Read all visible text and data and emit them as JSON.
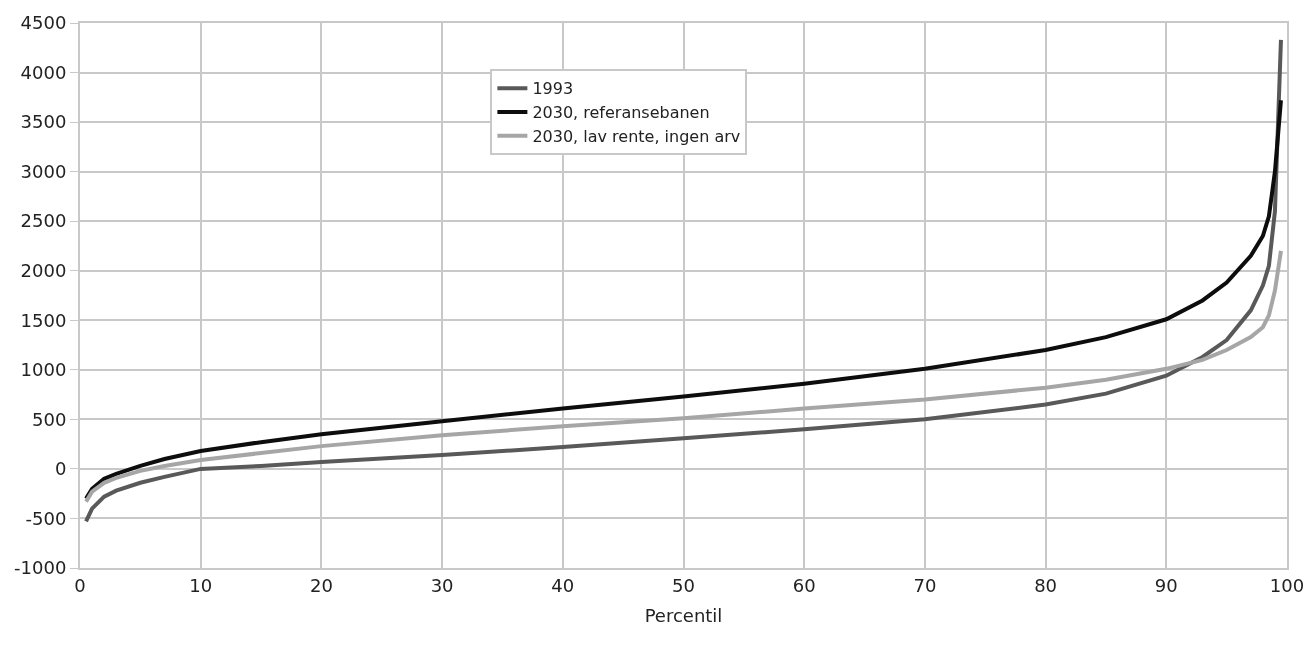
{
  "chart_data": {
    "type": "line",
    "xlabel": "Percentil",
    "x": [
      0.5,
      1,
      2,
      3,
      5,
      7,
      10,
      15,
      20,
      30,
      40,
      50,
      60,
      70,
      80,
      85,
      90,
      93,
      95,
      97,
      98,
      98.5,
      99,
      99.5
    ],
    "series": [
      {
        "name": "1993",
        "color": "#595959",
        "values": [
          -530,
          -400,
          -280,
          -220,
          -140,
          -80,
          0,
          30,
          70,
          140,
          220,
          310,
          400,
          500,
          650,
          760,
          940,
          1130,
          1300,
          1600,
          1850,
          2050,
          2600,
          4330
        ]
      },
      {
        "name": "2030, referansebanen",
        "color": "#0d0d0d",
        "values": [
          -300,
          -200,
          -100,
          -50,
          30,
          100,
          180,
          270,
          350,
          480,
          610,
          730,
          860,
          1010,
          1200,
          1330,
          1510,
          1700,
          1880,
          2150,
          2350,
          2550,
          3000,
          3720
        ]
      },
      {
        "name": "2030, lav rente, ingen arv",
        "color": "#a6a6a6",
        "values": [
          -330,
          -230,
          -140,
          -90,
          -20,
          30,
          90,
          160,
          230,
          340,
          430,
          510,
          610,
          700,
          820,
          900,
          1010,
          1100,
          1200,
          1330,
          1430,
          1550,
          1800,
          2200
        ]
      }
    ],
    "xlim": [
      0,
      100
    ],
    "xticks": [
      0,
      10,
      20,
      30,
      40,
      50,
      60,
      70,
      80,
      90,
      100
    ],
    "ylim": [
      -1000,
      4500
    ],
    "yticks": [
      -1000,
      -500,
      0,
      500,
      1000,
      1500,
      2000,
      2500,
      3000,
      3500,
      4000,
      4500
    ],
    "grid": true,
    "legend": "top",
    "marker": "none",
    "line_style": "solid"
  }
}
